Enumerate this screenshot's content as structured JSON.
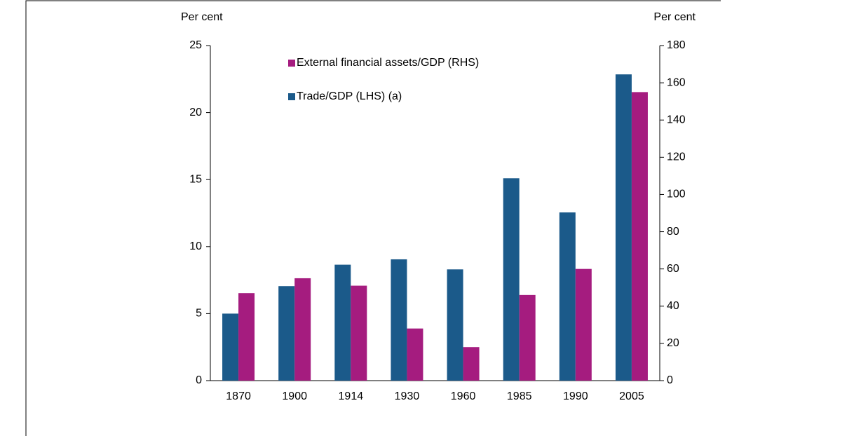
{
  "chart_data": {
    "type": "bar",
    "y_label": "Per cent",
    "y2_label": "Per cent",
    "categories": [
      "1870",
      "1900",
      "1914",
      "1930",
      "1960",
      "1985",
      "1990",
      "2005"
    ],
    "series": [
      {
        "name": "Trade/GDP (LHS) (a)",
        "color": "#1b5a8a",
        "values": [
          5.0,
          7.05,
          8.65,
          9.05,
          8.3,
          15.1,
          12.55,
          22.85
        ]
      },
      {
        "name": "External financial assets/GDP (RHS)",
        "color": "#a51c7f",
        "axis": "y2",
        "values": [
          47,
          55,
          51,
          28,
          18,
          46,
          60,
          155
        ]
      }
    ],
    "ylim": [
      0,
      25
    ],
    "yticks": [
      0,
      5,
      10,
      15,
      20,
      25
    ],
    "y2lim": [
      0,
      180
    ],
    "y2ticks": [
      0,
      20,
      40,
      60,
      80,
      100,
      120,
      140,
      160,
      180
    ]
  }
}
